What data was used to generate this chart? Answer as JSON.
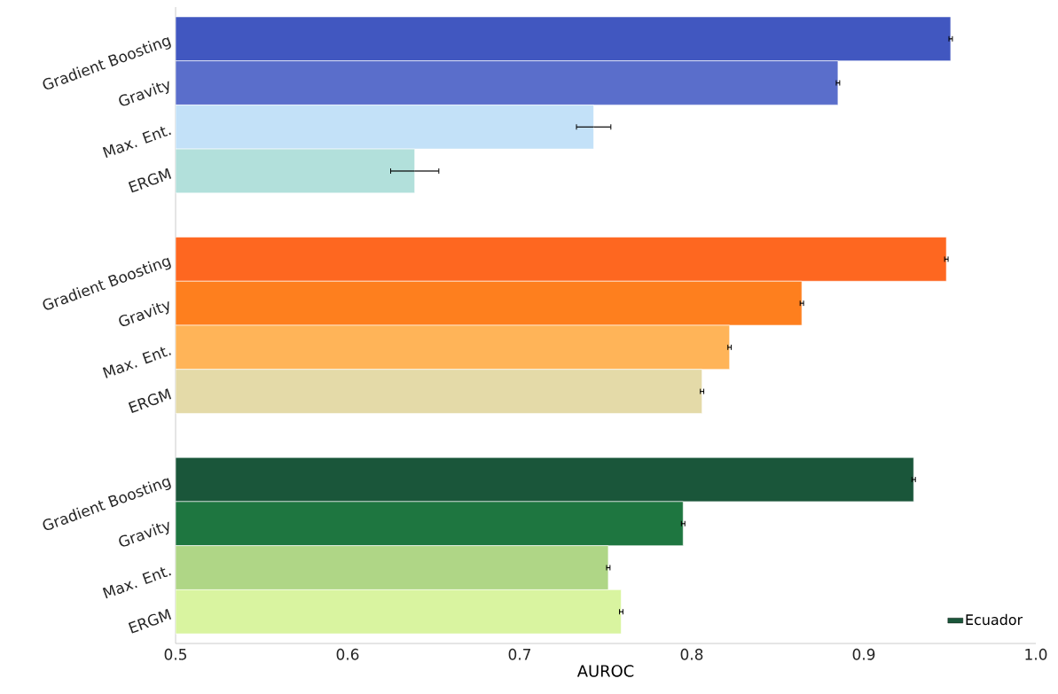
{
  "chart_data": {
    "type": "bar",
    "orientation": "horizontal",
    "xlabel": "AUROC",
    "categories": [
      "Gradient Boosting",
      "Gravity",
      "Max. Ent.",
      "ERGM",
      null,
      "Gradient Boosting",
      "Gravity",
      "Max. Ent.",
      "ERGM",
      null,
      "Gradient Boosting",
      "Gravity",
      "Max. Ent.",
      "ERGM"
    ],
    "xlim": [
      0.5,
      1.0
    ],
    "xticks": [
      {
        "value": 0.5,
        "label": "0.5"
      },
      {
        "value": 0.6,
        "label": "0.6"
      },
      {
        "value": 0.7,
        "label": "0.7"
      },
      {
        "value": 0.8,
        "label": "0.8"
      },
      {
        "value": 0.9,
        "label": "0.9"
      },
      {
        "value": 1.0,
        "label": "1.0"
      }
    ],
    "series": [
      {
        "color": "#4157c0",
        "colors": [
          "#4157c0",
          "#5a6ecb",
          "#c3e1f8",
          "#b2e0db",
          null,
          null,
          null,
          null,
          null,
          null,
          null,
          null,
          null,
          null
        ],
        "values": [
          0.9505,
          0.885,
          0.743,
          0.639,
          null,
          null,
          null,
          null,
          null,
          null,
          null,
          null,
          null,
          null
        ],
        "errors": [
          0.001,
          0.001,
          0.01,
          0.014,
          null,
          null,
          null,
          null,
          null,
          null,
          null,
          null,
          null,
          null
        ]
      },
      {
        "color": "#fe6720",
        "colors": [
          null,
          null,
          null,
          null,
          null,
          "#fe6720",
          "#fe7f1e",
          "#ffb458",
          "#e4daa8",
          null,
          null,
          null,
          null,
          null
        ],
        "values": [
          null,
          null,
          null,
          null,
          null,
          0.948,
          0.864,
          0.822,
          0.806,
          null,
          null,
          null,
          null,
          null
        ],
        "errors": [
          null,
          null,
          null,
          null,
          null,
          0.001,
          0.001,
          0.001,
          0.001,
          null,
          null,
          null,
          null,
          null
        ]
      },
      {
        "name": "Ecuador",
        "color": "#1a563a",
        "colors": [
          null,
          null,
          null,
          null,
          null,
          null,
          null,
          null,
          null,
          null,
          "#1a563a",
          "#1e7640",
          "#afd686",
          "#d9f4a0"
        ],
        "values": [
          null,
          null,
          null,
          null,
          null,
          null,
          null,
          null,
          null,
          null,
          0.929,
          0.795,
          0.7515,
          0.759
        ],
        "errors": [
          null,
          null,
          null,
          null,
          null,
          null,
          null,
          null,
          null,
          null,
          0.001,
          0.001,
          0.001,
          0.001
        ]
      }
    ],
    "legend": "bottom right"
  }
}
